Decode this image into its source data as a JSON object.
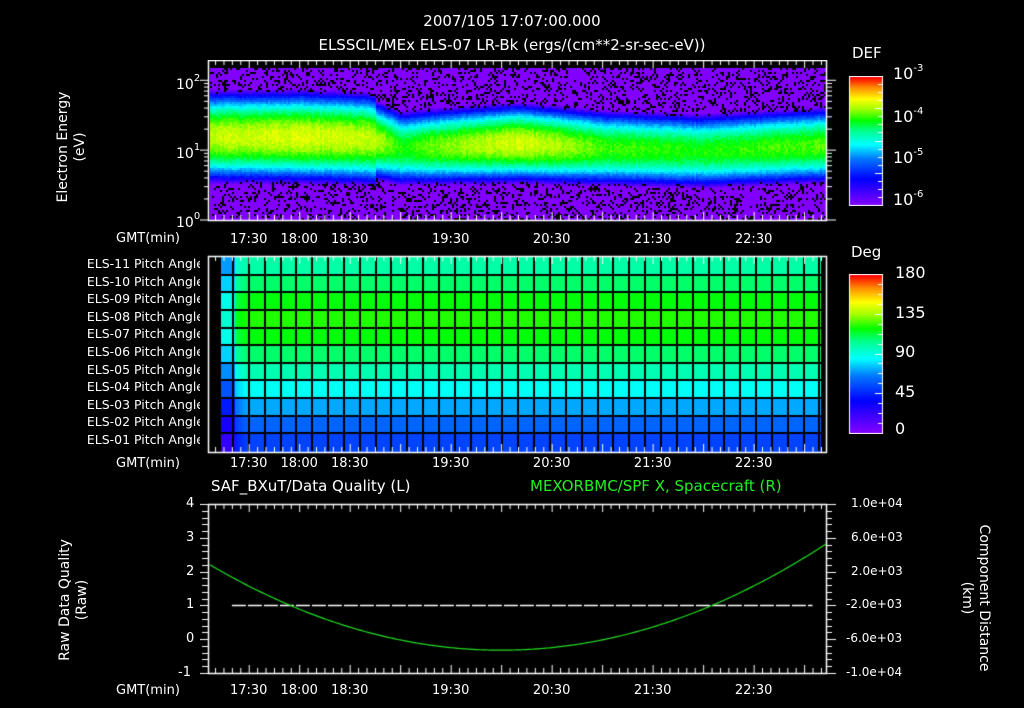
{
  "header": {
    "datetime": "2007/105 17:07:00.000",
    "panel1_title": "ELSSCIL/MEx ELS-07 LR-Bk  (ergs/(cm**2-sr-sec-eV))"
  },
  "time_axis": {
    "label": "GMT(min)",
    "tick_labels": [
      "17:30",
      "18:00",
      "18:30",
      "19:30",
      "20:30",
      "21:30",
      "22:30"
    ],
    "tick_minutes": [
      1050,
      1080,
      1110,
      1170,
      1230,
      1290,
      1350
    ],
    "start_minute": 1027,
    "end_minute": 1393
  },
  "panel_energy": {
    "ylabel_line1": "Electron Energy",
    "ylabel_line2": "(eV)",
    "ytick_base": "10",
    "ytick_exponents": [
      "2",
      "1",
      "0"
    ],
    "colorbar": {
      "title": "DEF",
      "base": "10",
      "exponents": [
        "-3",
        "-4",
        "-5",
        "-6"
      ]
    }
  },
  "panel_pitch": {
    "rows": [
      "ELS-11 Pitch Angle",
      "ELS-10 Pitch Angle",
      "ELS-09 Pitch Angle",
      "ELS-08 Pitch Angle",
      "ELS-07 Pitch Angle",
      "ELS-06 Pitch Angle",
      "ELS-05 Pitch Angle",
      "ELS-04 Pitch Angle",
      "ELS-03 Pitch Angle",
      "ELS-02 Pitch Angle",
      "ELS-01 Pitch Angle"
    ],
    "row_pitch_deg": [
      100,
      108,
      118,
      122,
      118,
      108,
      98,
      86,
      72,
      60,
      52
    ],
    "colorbar": {
      "title": "Deg",
      "labels": [
        "180",
        "135",
        "90",
        "45",
        "0"
      ]
    }
  },
  "panel_quality": {
    "left_title": "SAF_BXuT/Data Quality (L)",
    "right_title": "MEXORBMC/SPF X, Spacecraft (R)",
    "ylabel_left_line1": "Raw Data Quality",
    "ylabel_left_line2": "(Raw)",
    "yticks_left": [
      "4",
      "3",
      "2",
      "1",
      "0",
      "-1"
    ],
    "ylabel_right_line1": "Component Distance",
    "ylabel_right_line2": "(km)",
    "yticks_right": [
      "1.0e+04",
      "6.0e+03",
      "2.0e+03",
      "-2.0e+03",
      "-6.0e+03",
      "-1.0e+04"
    ],
    "series_color": "#22dd22",
    "quality_color": "#ffffff"
  },
  "chart_data": [
    {
      "type": "heatmap",
      "title": "ELSSCIL/MEx ELS-07 LR-Bk (ergs/(cm**2-sr-sec-eV))",
      "xlabel": "GMT(min)",
      "ylabel": "Electron Energy (eV)",
      "yscale": "log",
      "ylim": [
        1,
        150
      ],
      "xlim": [
        "17:07",
        "23:13"
      ],
      "colorbar": {
        "label": "DEF",
        "scale": "log",
        "range": [
          1e-06,
          0.001
        ]
      },
      "description": "Electron spectrogram; peak flux near 10-25 eV (~2e-4 DEF) before ~18:45, narrower green band (~1e-4) at 7-30 eV afterwards; enhanced burst near 20:10; background ~1e-6 above 60 eV and below 3 eV",
      "band_center_eV": [
        {
          "time": "17:10",
          "center": 16,
          "peak_def": 0.00022
        },
        {
          "time": "18:00",
          "center": 16,
          "peak_def": 0.00025
        },
        {
          "time": "18:40",
          "center": 15,
          "peak_def": 0.00023
        },
        {
          "time": "19:00",
          "center": 11,
          "peak_def": 0.0001
        },
        {
          "time": "20:10",
          "center": 13,
          "peak_def": 0.00025
        },
        {
          "time": "21:00",
          "center": 11,
          "peak_def": 0.00012
        },
        {
          "time": "22:00",
          "center": 10,
          "peak_def": 0.0001
        },
        {
          "time": "23:10",
          "center": 12,
          "peak_def": 0.00013
        }
      ]
    },
    {
      "type": "heatmap",
      "title": "Pitch Angle",
      "xlabel": "GMT(min)",
      "categories": [
        "ELS-11",
        "ELS-10",
        "ELS-09",
        "ELS-08",
        "ELS-07",
        "ELS-06",
        "ELS-05",
        "ELS-04",
        "ELS-03",
        "ELS-02",
        "ELS-01"
      ],
      "values_deg": [
        100,
        108,
        118,
        122,
        118,
        108,
        98,
        86,
        72,
        60,
        52
      ],
      "colorbar": {
        "label": "Deg",
        "range": [
          0,
          180
        ]
      }
    },
    {
      "type": "line",
      "title": "SAF_BXuT/Data Quality (L) / MEXORBMC/SPF X, Spacecraft (R)",
      "xlabel": "GMT(min)",
      "series": [
        {
          "name": "Data Quality (L)",
          "axis": "left",
          "x": [
            "17:20",
            "23:05"
          ],
          "values": [
            1,
            1
          ]
        },
        {
          "name": "SPF X, Spacecraft (R)",
          "axis": "right",
          "x": [
            "17:07",
            "17:30",
            "18:00",
            "18:30",
            "19:00",
            "19:30",
            "20:00",
            "20:30",
            "21:00",
            "21:30",
            "22:00",
            "22:30",
            "23:00",
            "23:13"
          ],
          "values": [
            2800,
            200,
            -2600,
            -4900,
            -6400,
            -7200,
            -7300,
            -6700,
            -5500,
            -3700,
            -1300,
            1200,
            3800,
            2800
          ]
        }
      ],
      "ylim_left": [
        -1,
        4
      ],
      "ylim_right": [
        -10000,
        10000
      ]
    }
  ]
}
